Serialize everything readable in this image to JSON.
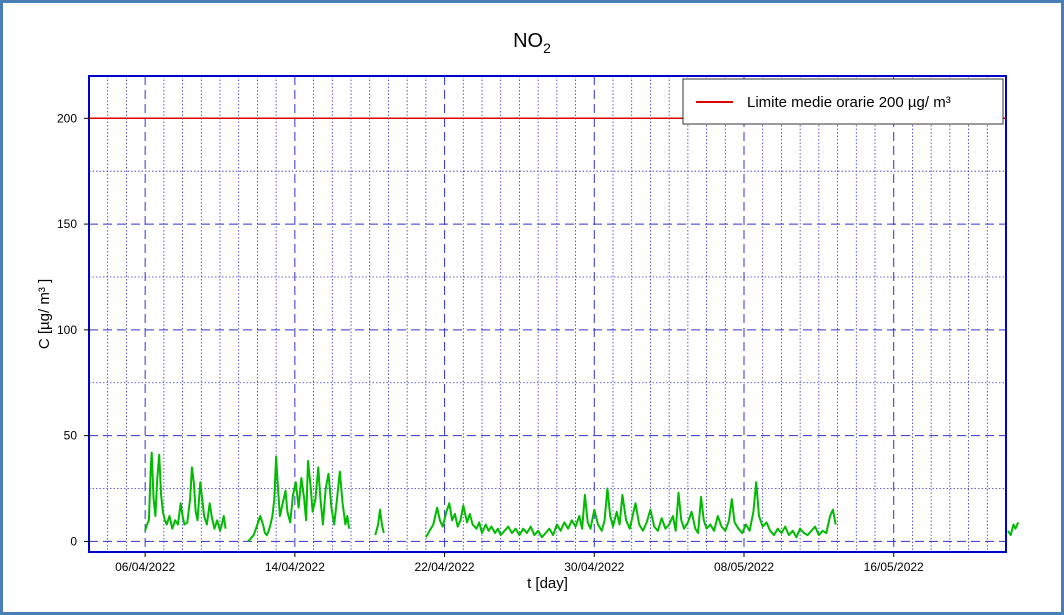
{
  "chart_data": {
    "type": "line",
    "title": "NO",
    "title_subscript": "2",
    "xlabel": "t [day]",
    "ylabel": "C [µg/ m³ ]",
    "ylim": [
      -5,
      220
    ],
    "xlim_days": [
      -3.0,
      46.0
    ],
    "x_start_date": "06/04/2022",
    "x_tick_labels": [
      "06/04/2022",
      "14/04/2022",
      "22/04/2022",
      "30/04/2022",
      "08/05/2022",
      "16/05/2022"
    ],
    "y_ticks": [
      0,
      50,
      100,
      150,
      200
    ],
    "grid": true,
    "legend_position": "top-right",
    "colors": {
      "axes": "#0000cc",
      "grid": "#3333cc",
      "series": "#00bb00",
      "limit": "#dd0000"
    },
    "series": [
      {
        "name": "Limite medie orarie 200 µg/ m³",
        "kind": "hline",
        "y": 200
      },
      {
        "name": "NO2",
        "kind": "line",
        "segments": [
          [
            [
              0.0,
              5
            ],
            [
              0.1,
              8
            ],
            [
              0.2,
              10
            ],
            [
              0.3,
              35
            ],
            [
              0.35,
              42
            ],
            [
              0.45,
              20
            ],
            [
              0.55,
              12
            ],
            [
              0.65,
              30
            ],
            [
              0.75,
              41
            ],
            [
              0.85,
              22
            ],
            [
              0.95,
              14
            ],
            [
              1.05,
              10
            ],
            [
              1.15,
              8
            ],
            [
              1.3,
              12
            ],
            [
              1.45,
              6
            ],
            [
              1.6,
              10
            ],
            [
              1.75,
              8
            ],
            [
              1.9,
              18
            ],
            [
              2.0,
              12
            ],
            [
              2.1,
              8
            ],
            [
              2.25,
              9
            ],
            [
              2.4,
              20
            ],
            [
              2.5,
              35
            ],
            [
              2.6,
              28
            ],
            [
              2.7,
              14
            ],
            [
              2.8,
              10
            ],
            [
              2.95,
              28
            ],
            [
              3.05,
              20
            ],
            [
              3.15,
              12
            ],
            [
              3.3,
              8
            ],
            [
              3.45,
              18
            ],
            [
              3.55,
              12
            ],
            [
              3.7,
              6
            ],
            [
              3.85,
              10
            ],
            [
              4.0,
              5
            ],
            [
              4.1,
              8
            ],
            [
              4.2,
              12
            ],
            [
              4.3,
              6
            ]
          ],
          [
            [
              5.5,
              0
            ],
            [
              5.8,
              3
            ],
            [
              6.0,
              8
            ],
            [
              6.15,
              12
            ],
            [
              6.3,
              8
            ],
            [
              6.4,
              4
            ],
            [
              6.5,
              3
            ],
            [
              6.6,
              5
            ],
            [
              6.7,
              8
            ],
            [
              6.8,
              12
            ],
            [
              6.9,
              20
            ],
            [
              7.0,
              40
            ],
            [
              7.1,
              25
            ],
            [
              7.2,
              12
            ],
            [
              7.35,
              18
            ],
            [
              7.5,
              24
            ],
            [
              7.6,
              14
            ],
            [
              7.75,
              9
            ],
            [
              7.9,
              22
            ],
            [
              8.05,
              28
            ],
            [
              8.2,
              16
            ],
            [
              8.35,
              30
            ],
            [
              8.5,
              20
            ],
            [
              8.6,
              10
            ],
            [
              8.7,
              38
            ],
            [
              8.85,
              25
            ],
            [
              8.95,
              14
            ],
            [
              9.1,
              20
            ],
            [
              9.25,
              35
            ],
            [
              9.35,
              22
            ],
            [
              9.5,
              8
            ],
            [
              9.65,
              25
            ],
            [
              9.8,
              32
            ],
            [
              9.95,
              16
            ],
            [
              10.1,
              8
            ],
            [
              10.25,
              20
            ],
            [
              10.4,
              33
            ],
            [
              10.55,
              18
            ],
            [
              10.7,
              8
            ],
            [
              10.8,
              12
            ],
            [
              10.9,
              6
            ]
          ],
          [
            [
              12.3,
              3
            ],
            [
              12.45,
              8
            ],
            [
              12.55,
              15
            ],
            [
              12.65,
              8
            ],
            [
              12.75,
              4
            ]
          ],
          [
            [
              15.0,
              2
            ],
            [
              15.2,
              5
            ],
            [
              15.4,
              8
            ],
            [
              15.6,
              16
            ],
            [
              15.75,
              10
            ],
            [
              15.9,
              7
            ],
            [
              16.1,
              14
            ],
            [
              16.25,
              18
            ],
            [
              16.4,
              10
            ],
            [
              16.55,
              13
            ],
            [
              16.7,
              7
            ],
            [
              16.85,
              10
            ],
            [
              17.0,
              17
            ],
            [
              17.2,
              9
            ],
            [
              17.35,
              13
            ],
            [
              17.5,
              8
            ],
            [
              17.7,
              6
            ],
            [
              17.85,
              9
            ],
            [
              18.0,
              4
            ],
            [
              18.2,
              8
            ],
            [
              18.35,
              5
            ],
            [
              18.5,
              7
            ],
            [
              18.7,
              4
            ],
            [
              18.85,
              6
            ],
            [
              19.0,
              3
            ],
            [
              19.2,
              5
            ],
            [
              19.4,
              7
            ],
            [
              19.6,
              4
            ],
            [
              19.8,
              6
            ],
            [
              20.0,
              3
            ],
            [
              20.2,
              6
            ],
            [
              20.4,
              4
            ],
            [
              20.6,
              7
            ],
            [
              20.8,
              3
            ],
            [
              21.0,
              5
            ],
            [
              21.2,
              2
            ],
            [
              21.4,
              4
            ],
            [
              21.6,
              6
            ],
            [
              21.8,
              3
            ],
            [
              22.0,
              8
            ],
            [
              22.2,
              5
            ],
            [
              22.4,
              9
            ],
            [
              22.6,
              6
            ],
            [
              22.8,
              10
            ],
            [
              23.0,
              7
            ],
            [
              23.2,
              12
            ],
            [
              23.35,
              6
            ],
            [
              23.5,
              22
            ],
            [
              23.65,
              9
            ],
            [
              23.8,
              6
            ],
            [
              24.0,
              15
            ],
            [
              24.2,
              8
            ],
            [
              24.4,
              5
            ],
            [
              24.55,
              10
            ],
            [
              24.7,
              25
            ],
            [
              24.85,
              12
            ],
            [
              25.0,
              7
            ],
            [
              25.2,
              14
            ],
            [
              25.35,
              8
            ],
            [
              25.5,
              22
            ],
            [
              25.7,
              10
            ],
            [
              25.9,
              6
            ],
            [
              26.05,
              12
            ],
            [
              26.2,
              18
            ],
            [
              26.4,
              8
            ],
            [
              26.6,
              5
            ],
            [
              26.8,
              9
            ],
            [
              27.0,
              15
            ],
            [
              27.2,
              7
            ],
            [
              27.4,
              5
            ],
            [
              27.6,
              11
            ],
            [
              27.8,
              6
            ],
            [
              28.0,
              8
            ],
            [
              28.2,
              12
            ],
            [
              28.35,
              5
            ],
            [
              28.5,
              23
            ],
            [
              28.65,
              10
            ],
            [
              28.8,
              6
            ],
            [
              29.0,
              9
            ],
            [
              29.2,
              14
            ],
            [
              29.4,
              6
            ],
            [
              29.55,
              4
            ],
            [
              29.7,
              21
            ],
            [
              29.85,
              10
            ],
            [
              30.0,
              6
            ],
            [
              30.2,
              8
            ],
            [
              30.4,
              5
            ],
            [
              30.6,
              12
            ],
            [
              30.8,
              7
            ],
            [
              31.0,
              5
            ],
            [
              31.2,
              10
            ],
            [
              31.35,
              20
            ],
            [
              31.5,
              9
            ],
            [
              31.7,
              6
            ],
            [
              31.9,
              4
            ],
            [
              32.1,
              8
            ],
            [
              32.3,
              5
            ],
            [
              32.5,
              14
            ],
            [
              32.65,
              28
            ],
            [
              32.8,
              12
            ],
            [
              33.0,
              7
            ],
            [
              33.2,
              9
            ],
            [
              33.4,
              5
            ],
            [
              33.6,
              3
            ],
            [
              33.8,
              6
            ],
            [
              34.0,
              4
            ],
            [
              34.2,
              7
            ],
            [
              34.4,
              3
            ],
            [
              34.6,
              5
            ],
            [
              34.8,
              2
            ],
            [
              35.0,
              6
            ],
            [
              35.2,
              4
            ],
            [
              35.4,
              3
            ],
            [
              35.6,
              5
            ],
            [
              35.8,
              7
            ],
            [
              36.0,
              3
            ],
            [
              36.2,
              5
            ],
            [
              36.4,
              4
            ],
            [
              36.6,
              12
            ],
            [
              36.75,
              15
            ],
            [
              36.9,
              8
            ]
          ],
          [
            [
              46.1,
              5
            ],
            [
              46.25,
              3
            ],
            [
              46.4,
              8
            ],
            [
              46.5,
              6
            ],
            [
              46.65,
              9
            ]
          ]
        ]
      }
    ]
  }
}
